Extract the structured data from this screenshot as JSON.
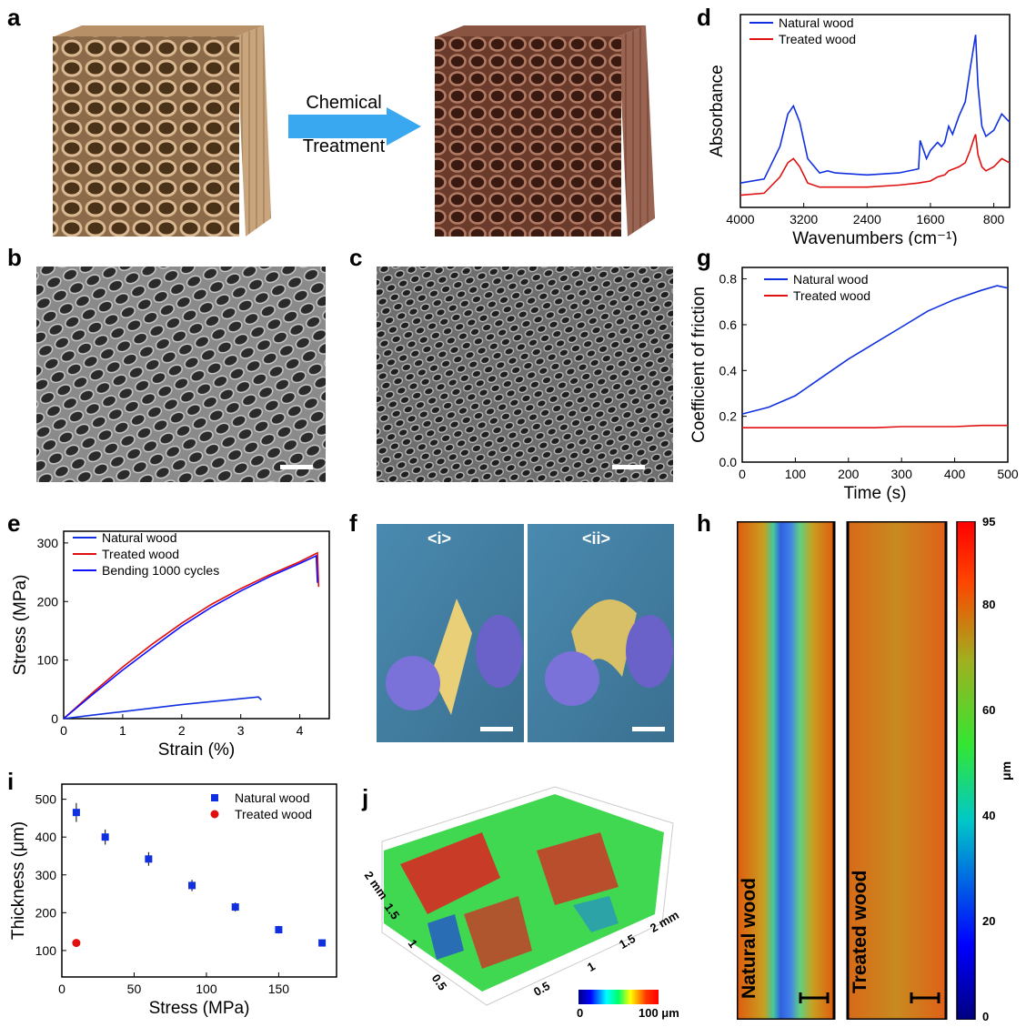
{
  "panels": {
    "a": {
      "letter": "a",
      "arrow_text_1": "Chemical",
      "arrow_text_2": "Treatment"
    },
    "b": {
      "letter": "b"
    },
    "c": {
      "letter": "c"
    },
    "d": {
      "letter": "d"
    },
    "e": {
      "letter": "e"
    },
    "f": {
      "letter": "f",
      "label_i": "<i>",
      "label_ii": "<ii>"
    },
    "g": {
      "letter": "g"
    },
    "h": {
      "letter": "h",
      "left_label": "Natural wood",
      "right_label": "Treated wood",
      "colorbar_ticks": [
        "95",
        "80",
        "60",
        "40",
        "20",
        "0"
      ],
      "colorbar_unit": "μm"
    },
    "i": {
      "letter": "i"
    },
    "j": {
      "letter": "j",
      "y_ticks": [
        "2 mm",
        "1.5",
        "1",
        "0.5"
      ],
      "x_ticks": [
        "0.5",
        "1",
        "1.5",
        "2 mm"
      ],
      "colorbar_min": "0",
      "colorbar_max": "100 μm"
    }
  },
  "colors": {
    "natural": "#1030e0",
    "treated": "#e01010",
    "bending": "#1010ff",
    "black": "#000000",
    "arrow": "#3aa8f0"
  },
  "chart_data": [
    {
      "id": "d",
      "type": "line",
      "xlabel": "Wavenumbers (cm⁻¹)",
      "ylabel": "Absorbance",
      "xlim": [
        4000,
        600
      ],
      "x_ticks": [
        4000,
        3200,
        2400,
        1600,
        800
      ],
      "series": [
        {
          "name": "Natural wood",
          "x": [
            4000,
            3700,
            3500,
            3400,
            3330,
            3250,
            3150,
            3000,
            2900,
            2800,
            2400,
            2000,
            1750,
            1730,
            1650,
            1600,
            1510,
            1460,
            1420,
            1370,
            1320,
            1240,
            1160,
            1100,
            1050,
            1030,
            1000,
            950,
            900,
            800,
            700,
            600
          ],
          "y": [
            0.12,
            0.14,
            0.3,
            0.46,
            0.5,
            0.42,
            0.24,
            0.17,
            0.18,
            0.17,
            0.16,
            0.17,
            0.19,
            0.33,
            0.24,
            0.28,
            0.32,
            0.3,
            0.32,
            0.4,
            0.36,
            0.45,
            0.52,
            0.68,
            0.8,
            0.85,
            0.6,
            0.4,
            0.35,
            0.38,
            0.46,
            0.42
          ]
        },
        {
          "name": "Treated wood",
          "x": [
            4000,
            3700,
            3500,
            3400,
            3330,
            3250,
            3150,
            3000,
            2400,
            2000,
            1750,
            1600,
            1510,
            1420,
            1370,
            1240,
            1160,
            1100,
            1050,
            1030,
            1000,
            950,
            900,
            800,
            700,
            600
          ],
          "y": [
            0.06,
            0.07,
            0.15,
            0.22,
            0.24,
            0.2,
            0.12,
            0.1,
            0.1,
            0.11,
            0.12,
            0.13,
            0.15,
            0.16,
            0.18,
            0.2,
            0.22,
            0.28,
            0.34,
            0.36,
            0.26,
            0.2,
            0.18,
            0.2,
            0.24,
            0.22
          ]
        }
      ]
    },
    {
      "id": "e",
      "type": "line",
      "xlabel": "Strain (%)",
      "ylabel": "Stress (MPa)",
      "xlim": [
        0,
        4.5
      ],
      "ylim": [
        0,
        320
      ],
      "x_ticks": [
        0,
        1,
        2,
        3,
        4
      ],
      "y_ticks": [
        0,
        100,
        200,
        300
      ],
      "series": [
        {
          "name": "Natural wood",
          "x": [
            0,
            0.5,
            1,
            1.5,
            2,
            2.5,
            3,
            3.3,
            3.35
          ],
          "y": [
            0,
            6,
            12,
            18,
            24,
            29,
            34,
            37,
            32
          ]
        },
        {
          "name": "Treated wood",
          "x": [
            0,
            0.5,
            1,
            1.5,
            2,
            2.5,
            3,
            3.5,
            4,
            4.3,
            4.32
          ],
          "y": [
            0,
            45,
            88,
            127,
            163,
            195,
            222,
            246,
            268,
            283,
            225
          ]
        },
        {
          "name": "Bending 1000 cycles",
          "x": [
            0,
            0.5,
            1,
            1.5,
            2,
            2.5,
            3,
            3.5,
            4,
            4.28,
            4.3
          ],
          "y": [
            0,
            42,
            83,
            121,
            158,
            190,
            218,
            243,
            265,
            278,
            232
          ]
        }
      ]
    },
    {
      "id": "g",
      "type": "line",
      "xlabel": "Time (s)",
      "ylabel": "Coefficient of friction",
      "xlim": [
        0,
        500
      ],
      "ylim": [
        0,
        0.85
      ],
      "x_ticks": [
        0,
        100,
        200,
        300,
        400,
        500
      ],
      "y_ticks": [
        0.0,
        0.2,
        0.4,
        0.6,
        0.8
      ],
      "series": [
        {
          "name": "Natural wood",
          "x": [
            0,
            50,
            100,
            150,
            200,
            250,
            300,
            350,
            400,
            450,
            480,
            500
          ],
          "y": [
            0.21,
            0.24,
            0.29,
            0.37,
            0.45,
            0.52,
            0.59,
            0.66,
            0.71,
            0.75,
            0.77,
            0.76
          ]
        },
        {
          "name": "Treated wood",
          "x": [
            0,
            50,
            100,
            150,
            200,
            250,
            300,
            350,
            400,
            450,
            500
          ],
          "y": [
            0.15,
            0.15,
            0.15,
            0.15,
            0.15,
            0.15,
            0.155,
            0.155,
            0.155,
            0.16,
            0.16
          ]
        }
      ]
    },
    {
      "id": "i",
      "type": "scatter",
      "xlabel": "Stress (MPa)",
      "ylabel": "Thickness (μm)",
      "xlim": [
        0,
        190
      ],
      "ylim": [
        30,
        540
      ],
      "x_ticks": [
        0,
        50,
        100,
        150
      ],
      "y_ticks": [
        100,
        200,
        300,
        400,
        500
      ],
      "series": [
        {
          "name": "Natural wood",
          "x": [
            10,
            30,
            60,
            90,
            120,
            150,
            180
          ],
          "y": [
            465,
            400,
            342,
            272,
            215,
            155,
            120
          ],
          "err": [
            25,
            20,
            18,
            15,
            12,
            10,
            8
          ]
        },
        {
          "name": "Treated wood",
          "x": [
            10
          ],
          "y": [
            120
          ],
          "err": [
            8
          ]
        }
      ]
    }
  ]
}
